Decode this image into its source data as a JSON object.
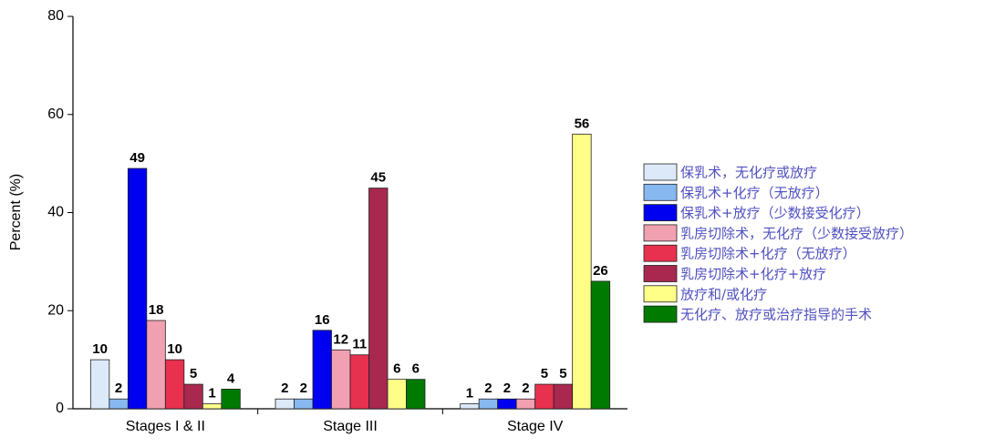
{
  "chart_data": {
    "type": "bar",
    "y_label": "Percent (%)",
    "categories": [
      "Stages I & II",
      "Stage III",
      "Stage IV"
    ],
    "series": [
      {
        "name": "保乳术，无化疗或放疗",
        "color": "#dce9f8",
        "values": [
          10,
          2,
          1
        ]
      },
      {
        "name": "保乳术+化疗（无放疗）",
        "color": "#88b8f0",
        "values": [
          2,
          2,
          2
        ]
      },
      {
        "name": "保乳术+放疗（少数接受化疗）",
        "color": "#0000f0",
        "values": [
          49,
          16,
          2
        ]
      },
      {
        "name": "乳房切除术，无化疗（少数接受放疗）",
        "color": "#f0a0b0",
        "values": [
          18,
          12,
          2
        ]
      },
      {
        "name": "乳房切除术+化疗（无放疗）",
        "color": "#e8304f",
        "values": [
          10,
          11,
          5
        ]
      },
      {
        "name": "乳房切除术+化疗+放疗",
        "color": "#a8284f",
        "values": [
          5,
          45,
          5
        ]
      },
      {
        "name": "放疗和/或化疗",
        "color": "#ffff88",
        "values": [
          1,
          6,
          56
        ]
      },
      {
        "name": "无化疗、放疗或治疗指导的手术",
        "color": "#007a00",
        "values": [
          4,
          6,
          26
        ]
      }
    ],
    "ylim": [
      0,
      80
    ],
    "yticks": [
      0,
      20,
      40,
      60,
      80
    ],
    "grid": false,
    "legend": "right"
  }
}
